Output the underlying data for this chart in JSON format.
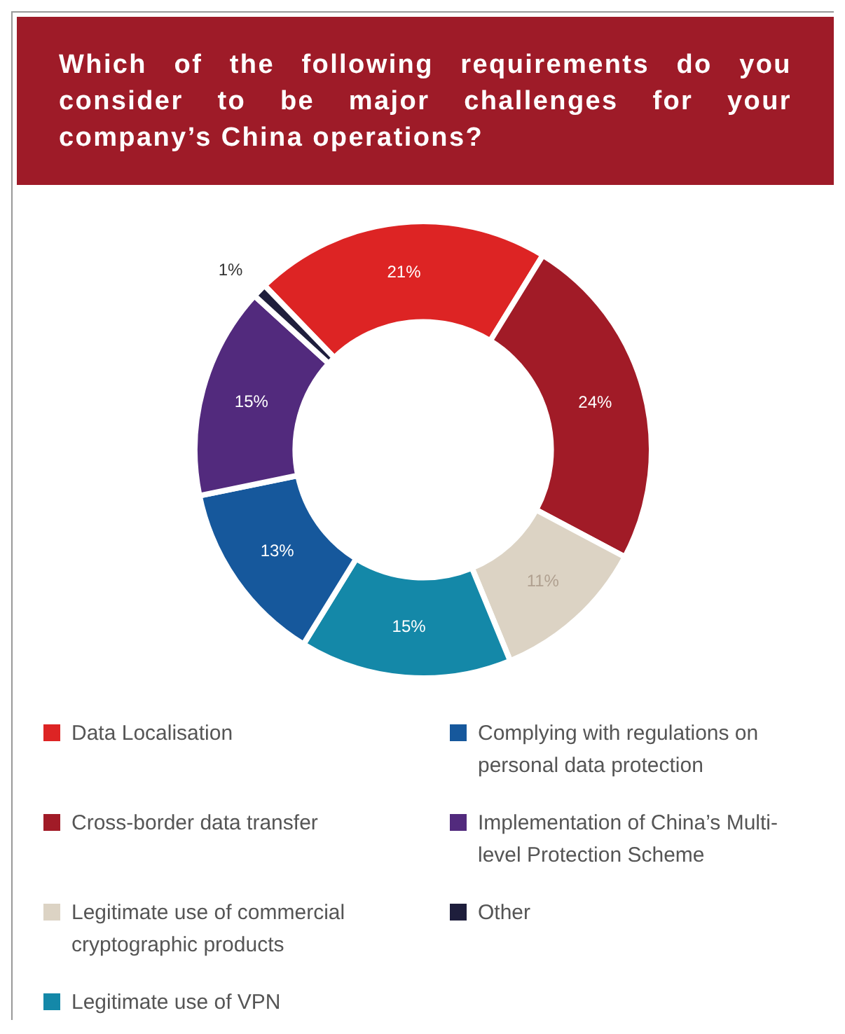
{
  "chart_data": {
    "type": "donut",
    "title": "Which of the following requirements do you consider to be major challenges for your company’s China operations?",
    "categories": [
      "Data Localisation",
      "Cross-border data transfer",
      "Legitimate use of commercial cryptographic products",
      "Legitimate use of VPN",
      "Complying with regulations on personal data protection",
      "Implementation of China’s Multi-level Protection Scheme",
      "Other"
    ],
    "values": [
      21,
      24,
      11,
      15,
      13,
      15,
      1
    ],
    "colors": [
      "#dd2424",
      "#a11b27",
      "#dcd3c4",
      "#1488a8",
      "#16589c",
      "#522a7d",
      "#1e1e3c"
    ],
    "value_labels": [
      "21%",
      "24%",
      "11%",
      "15%",
      "13%",
      "15%",
      "1%"
    ],
    "legend": "bottom"
  }
}
